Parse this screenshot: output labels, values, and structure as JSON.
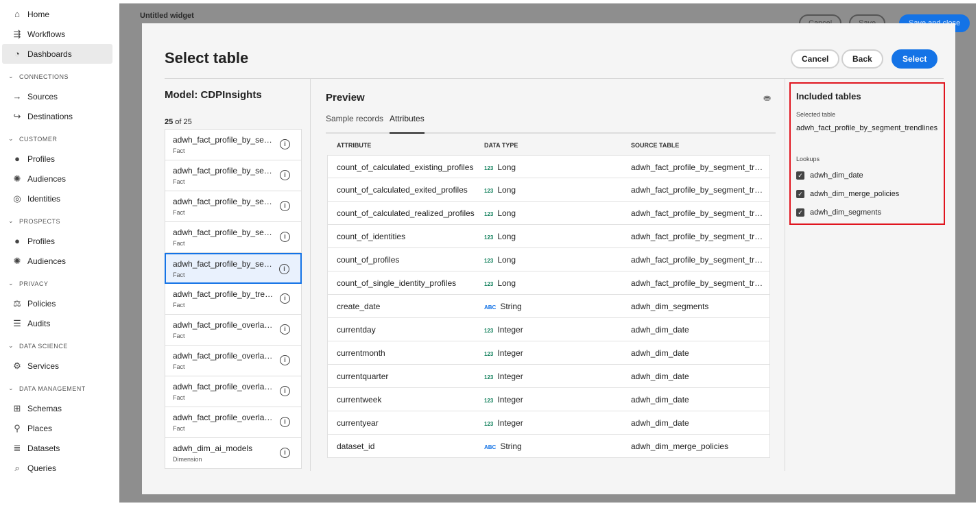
{
  "sidebar": {
    "top": [
      {
        "label": "Home",
        "icon": "home-icon"
      },
      {
        "label": "Workflows",
        "icon": "workflow-icon"
      },
      {
        "label": "Dashboards",
        "icon": "dashboard-icon"
      }
    ],
    "sections": [
      {
        "title": "CONNECTIONS",
        "items": [
          {
            "label": "Sources"
          },
          {
            "label": "Destinations"
          }
        ]
      },
      {
        "title": "CUSTOMER",
        "items": [
          {
            "label": "Profiles"
          },
          {
            "label": "Audiences"
          },
          {
            "label": "Identities"
          }
        ]
      },
      {
        "title": "PROSPECTS",
        "items": [
          {
            "label": "Profiles"
          },
          {
            "label": "Audiences"
          }
        ]
      },
      {
        "title": "PRIVACY",
        "items": [
          {
            "label": "Policies"
          },
          {
            "label": "Audits"
          }
        ]
      },
      {
        "title": "DATA SCIENCE",
        "items": [
          {
            "label": "Services"
          }
        ]
      },
      {
        "title": "DATA MANAGEMENT",
        "items": [
          {
            "label": "Schemas"
          },
          {
            "label": "Places"
          },
          {
            "label": "Datasets"
          },
          {
            "label": "Queries"
          }
        ]
      }
    ]
  },
  "background": {
    "title": "Untitled widget",
    "cancel": "Cancel",
    "save": "Save",
    "save_close": "Save and close"
  },
  "modal": {
    "title": "Select table",
    "cancel": "Cancel",
    "back": "Back",
    "select": "Select",
    "model_title": "Model: CDPInsights",
    "count_shown": "25",
    "count_of": " of 25",
    "tables": [
      {
        "name": "adwh_fact_profile_by_segm...",
        "type": "Fact"
      },
      {
        "name": "adwh_fact_profile_by_segm...",
        "type": "Fact"
      },
      {
        "name": "adwh_fact_profile_by_segm...",
        "type": "Fact"
      },
      {
        "name": "adwh_fact_profile_by_segm...",
        "type": "Fact"
      },
      {
        "name": "adwh_fact_profile_by_segm...",
        "type": "Fact",
        "selected": true
      },
      {
        "name": "adwh_fact_profile_by_trendl...",
        "type": "Fact"
      },
      {
        "name": "adwh_fact_profile_overlap_...",
        "type": "Fact"
      },
      {
        "name": "adwh_fact_profile_overlap_...",
        "type": "Fact"
      },
      {
        "name": "adwh_fact_profile_overlap_...",
        "type": "Fact"
      },
      {
        "name": "adwh_fact_profile_overlap_...",
        "type": "Fact"
      },
      {
        "name": "adwh_dim_ai_models",
        "type": "Dimension"
      }
    ],
    "preview": {
      "title": "Preview",
      "tabs": [
        "Sample records",
        "Attributes"
      ],
      "active_tab": "Attributes",
      "columns": [
        "ATTRIBUTE",
        "DATA TYPE",
        "SOURCE TABLE"
      ],
      "rows": [
        [
          "count_of_calculated_existing_profiles",
          "123",
          "Long",
          "adwh_fact_profile_by_segment_tren..."
        ],
        [
          "count_of_calculated_exited_profiles",
          "123",
          "Long",
          "adwh_fact_profile_by_segment_tren..."
        ],
        [
          "count_of_calculated_realized_profiles",
          "123",
          "Long",
          "adwh_fact_profile_by_segment_tren..."
        ],
        [
          "count_of_identities",
          "123",
          "Long",
          "adwh_fact_profile_by_segment_tren..."
        ],
        [
          "count_of_profiles",
          "123",
          "Long",
          "adwh_fact_profile_by_segment_tren..."
        ],
        [
          "count_of_single_identity_profiles",
          "123",
          "Long",
          "adwh_fact_profile_by_segment_tren..."
        ],
        [
          "create_date",
          "ABC",
          "String",
          "adwh_dim_segments"
        ],
        [
          "currentday",
          "123",
          "Integer",
          "adwh_dim_date"
        ],
        [
          "currentmonth",
          "123",
          "Integer",
          "adwh_dim_date"
        ],
        [
          "currentquarter",
          "123",
          "Integer",
          "adwh_dim_date"
        ],
        [
          "currentweek",
          "123",
          "Integer",
          "adwh_dim_date"
        ],
        [
          "currentyear",
          "123",
          "Integer",
          "adwh_dim_date"
        ],
        [
          "dataset_id",
          "ABC",
          "String",
          "adwh_dim_merge_policies"
        ]
      ],
      "type_colors": {
        "123": "#12805c",
        "ABC": "#1473e6"
      }
    },
    "included": {
      "title": "Included tables",
      "selected_label": "Selected table",
      "selected_value": "adwh_fact_profile_by_segment_trendlines",
      "lookups_label": "Lookups",
      "lookups": [
        {
          "label": "adwh_dim_date",
          "checked": true
        },
        {
          "label": "adwh_dim_merge_policies",
          "checked": true
        },
        {
          "label": "adwh_dim_segments",
          "checked": true
        }
      ]
    }
  },
  "colors": {
    "accent": "#1473e6",
    "highlight_border": "#e0141e"
  }
}
